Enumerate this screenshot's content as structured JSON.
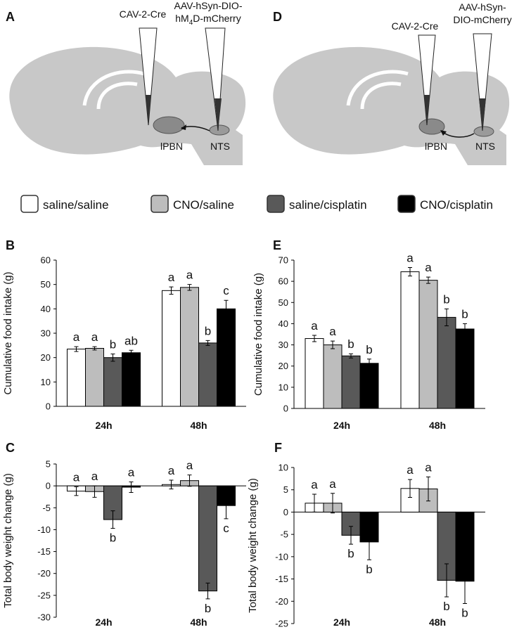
{
  "diagrams": [
    {
      "panel": "A",
      "pipette_1": "CAV-2-Cre",
      "pipette_2": [
        "AAV-hSyn-DIO-",
        "hM",
        "4",
        "D-mCherry"
      ],
      "region_1": "lPBN",
      "region_2": "NTS"
    },
    {
      "panel": "D",
      "pipette_1": "CAV-2-Cre",
      "pipette_2": [
        "AAV-hSyn-",
        "DIO-mCherry"
      ],
      "region_1": "lPBN",
      "region_2": "NTS"
    }
  ],
  "chart_data": [
    {
      "type": "bar",
      "panel": "B",
      "y_label": "Cumulative food intake (g)",
      "categories": [
        "24h",
        "48h"
      ],
      "ylim": [
        0,
        60
      ],
      "yticks": [
        0,
        10,
        20,
        30,
        40,
        50,
        60
      ],
      "series": [
        {
          "name": "saline/saline",
          "color": "#ffffff",
          "values": [
            23.5,
            47.5
          ],
          "errors": [
            1,
            1.5
          ],
          "letters": [
            "a",
            "a"
          ]
        },
        {
          "name": "CNO/saline",
          "color": "#bdbdbd",
          "values": [
            23.8,
            48.8
          ],
          "errors": [
            0.7,
            1.2
          ],
          "letters": [
            "a",
            "a"
          ]
        },
        {
          "name": "saline/cisplatin",
          "color": "#595959",
          "values": [
            20,
            26
          ],
          "errors": [
            1.5,
            1
          ],
          "letters": [
            "b",
            "b"
          ]
        },
        {
          "name": "CNO/cisplatin",
          "color": "#000000",
          "values": [
            22,
            40
          ],
          "errors": [
            1,
            3.5
          ],
          "letters": [
            "ab",
            "c"
          ]
        }
      ]
    },
    {
      "type": "bar",
      "panel": "E",
      "y_label": "Cumulative food intake (g)",
      "categories": [
        "24h",
        "48h"
      ],
      "ylim": [
        0,
        70
      ],
      "yticks": [
        0,
        10,
        20,
        30,
        40,
        50,
        60,
        70
      ],
      "series": [
        {
          "color": "#ffffff",
          "values": [
            33,
            64.5
          ],
          "errors": [
            1.5,
            2
          ],
          "letters": [
            "a",
            "a"
          ]
        },
        {
          "color": "#bdbdbd",
          "values": [
            30,
            60.5
          ],
          "errors": [
            1.8,
            1.5
          ],
          "letters": [
            "a",
            "a"
          ]
        },
        {
          "color": "#595959",
          "values": [
            24.8,
            43
          ],
          "errors": [
            1,
            4
          ],
          "letters": [
            "b",
            "b"
          ]
        },
        {
          "color": "#000000",
          "values": [
            21.3,
            37.5
          ],
          "errors": [
            2,
            2.5
          ],
          "letters": [
            "b",
            "b"
          ]
        }
      ]
    },
    {
      "type": "bar",
      "panel": "C",
      "y_label": "Total body weight change (g)",
      "categories": [
        "24h",
        "48h"
      ],
      "ylim": [
        -30,
        5
      ],
      "yticks": [
        -30,
        -25,
        -20,
        -15,
        -10,
        -5,
        0,
        5
      ],
      "series": [
        {
          "color": "#ffffff",
          "values": [
            -1.2,
            0.3
          ],
          "errors": [
            1,
            1
          ],
          "letters": [
            "a",
            "a"
          ]
        },
        {
          "color": "#bdbdbd",
          "values": [
            -1.3,
            1.2
          ],
          "errors": [
            1.3,
            1.3
          ],
          "letters": [
            "a",
            "a"
          ]
        },
        {
          "color": "#595959",
          "values": [
            -7.7,
            -24
          ],
          "errors": [
            2,
            1.8
          ],
          "letters": [
            "b",
            "b"
          ]
        },
        {
          "color": "#000000",
          "values": [
            -0.3,
            -4.5
          ],
          "errors": [
            1.2,
            3
          ],
          "letters": [
            "a",
            "c"
          ]
        }
      ]
    },
    {
      "type": "bar",
      "panel": "F",
      "y_label": "Total body weight change (g)",
      "categories": [
        "24h",
        "48h"
      ],
      "ylim": [
        -25,
        10
      ],
      "yticks": [
        -25,
        -20,
        -15,
        -10,
        -5,
        0,
        5,
        10
      ],
      "series": [
        {
          "color": "#ffffff",
          "values": [
            2,
            5.3
          ],
          "errors": [
            2,
            2
          ],
          "letters": [
            "a",
            "a"
          ]
        },
        {
          "color": "#bdbdbd",
          "values": [
            2,
            5.2
          ],
          "errors": [
            2.2,
            2.7
          ],
          "letters": [
            "a",
            "a"
          ]
        },
        {
          "color": "#595959",
          "values": [
            -5.2,
            -15.3
          ],
          "errors": [
            2,
            3.7
          ],
          "letters": [
            "b",
            "b"
          ]
        },
        {
          "color": "#000000",
          "values": [
            -6.7,
            -15.5
          ],
          "errors": [
            4,
            5
          ],
          "letters": [
            "b",
            "b"
          ]
        }
      ]
    }
  ]
}
